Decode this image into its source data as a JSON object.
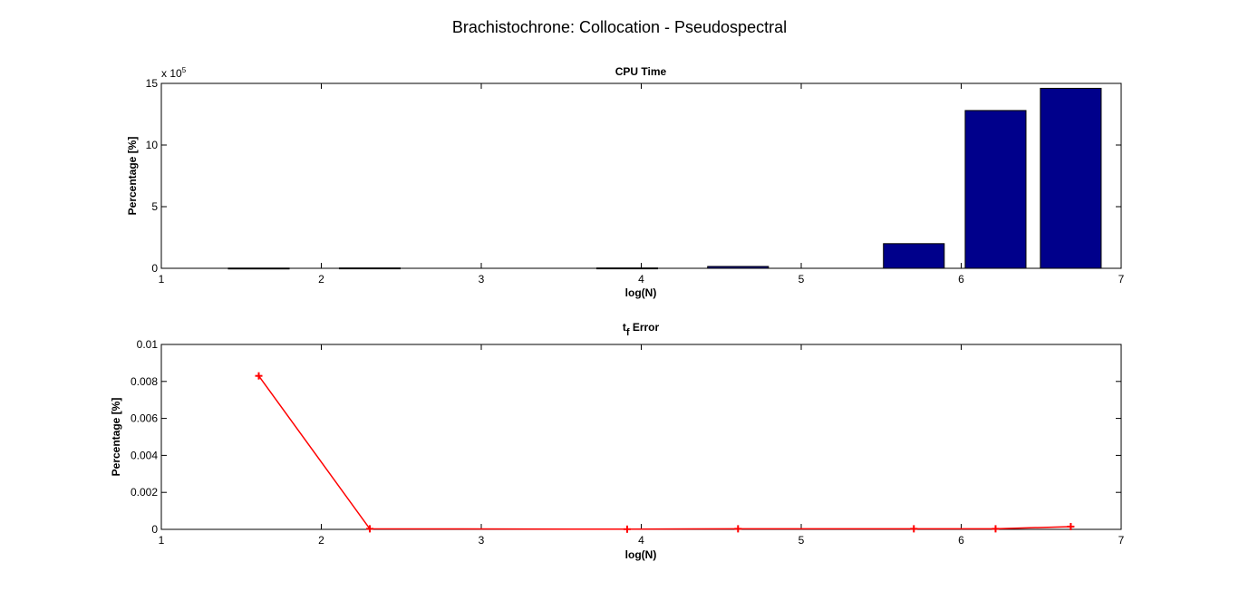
{
  "figure": {
    "title": "Brachistochrone: Collocation - Pseudospectral"
  },
  "chart_data": [
    {
      "type": "bar",
      "title": "CPU Time",
      "xlabel": "log(N)",
      "ylabel": "Percentage [%]",
      "y_multiplier_label": "x 10",
      "y_multiplier_exponent": "5",
      "xlim": [
        1,
        7
      ],
      "ylim": [
        0,
        15
      ],
      "xticks": [
        1,
        2,
        3,
        4,
        5,
        6,
        7
      ],
      "yticks": [
        0,
        5,
        10,
        15
      ],
      "bar_color": "#00008B",
      "x": [
        1.609,
        2.303,
        3.912,
        4.605,
        5.704,
        6.215,
        6.685
      ],
      "values": [
        0.02,
        0.03,
        0.03,
        0.15,
        2.0,
        12.8,
        14.6
      ],
      "grid": false
    },
    {
      "type": "line",
      "title_main": "t",
      "title_sub": "f",
      "title_rest": " Error",
      "xlabel": "log(N)",
      "ylabel": "Percentage [%]",
      "xlim": [
        1,
        7
      ],
      "ylim": [
        0,
        0.01
      ],
      "xticks": [
        1,
        2,
        3,
        4,
        5,
        6,
        7
      ],
      "yticks": [
        "0",
        "0.002",
        "0.004",
        "0.006",
        "0.008",
        "0.01"
      ],
      "ytick_values": [
        0,
        0.002,
        0.004,
        0.006,
        0.008,
        0.01
      ],
      "line_color": "#FF0000",
      "marker": "+",
      "x": [
        1.609,
        2.303,
        3.912,
        4.605,
        5.704,
        6.215,
        6.685
      ],
      "y": [
        0.0083,
        3e-05,
        1e-05,
        3e-05,
        3e-05,
        3e-05,
        0.00015
      ],
      "grid": false
    }
  ]
}
